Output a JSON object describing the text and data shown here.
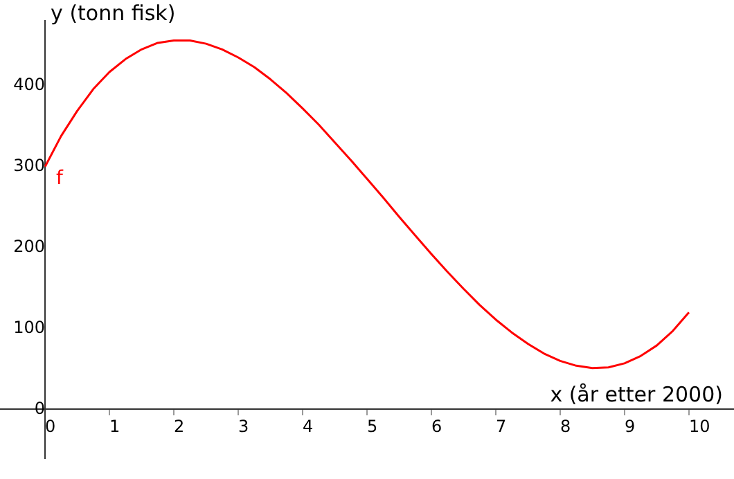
{
  "chart_data": {
    "type": "line",
    "xlabel": "x (år etter 2000)",
    "ylabel": "y (tonn fisk)",
    "x": [
      0,
      0.25,
      0.5,
      0.75,
      1,
      1.25,
      1.5,
      1.75,
      2,
      2.25,
      2.5,
      2.75,
      3,
      3.25,
      3.5,
      3.75,
      4,
      4.25,
      4.5,
      4.75,
      5,
      5.25,
      5.5,
      5.75,
      6,
      6.25,
      6.5,
      6.75,
      7,
      7.25,
      7.5,
      7.75,
      8,
      8.25,
      8.5,
      8.75,
      9,
      9.25,
      9.5,
      9.75,
      10
    ],
    "series": [
      {
        "name": "f",
        "color": "#ff0000",
        "values": [
          300,
          338,
          369,
          396,
          417,
          433,
          445,
          453,
          456,
          456,
          452,
          445,
          435,
          423,
          408,
          391,
          372,
          352,
          330,
          308,
          285,
          262,
          238,
          215,
          192,
          170,
          149,
          129,
          111,
          95,
          81,
          69,
          60,
          54,
          51,
          52,
          57,
          66,
          79,
          97,
          120
        ]
      }
    ],
    "xlim": [
      -0.7,
      10.7
    ],
    "ylim": [
      -60,
      480
    ],
    "xticks": [
      0,
      1,
      2,
      3,
      4,
      5,
      6,
      7,
      8,
      9,
      10
    ],
    "yticks": [
      0,
      100,
      200,
      300,
      400
    ],
    "grid": false,
    "legend": false,
    "marker": "none",
    "line_style": "solid"
  }
}
